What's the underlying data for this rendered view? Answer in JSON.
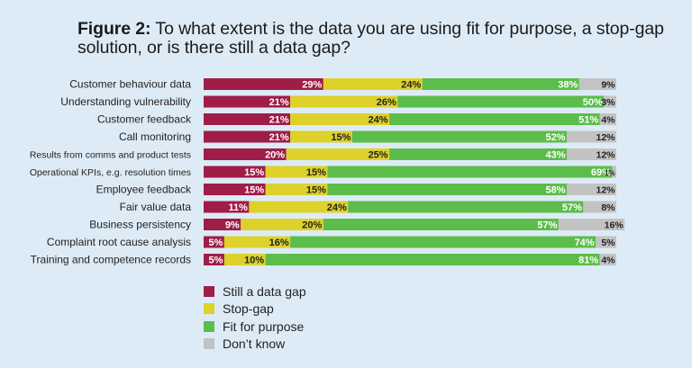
{
  "title": {
    "figure_label": "Figure 2:",
    "text": "To what extent is the data you are using fit for purpose, a stop-gap solution, or is there still a data gap?"
  },
  "chart_data": {
    "type": "bar",
    "orientation": "horizontal",
    "stacked": true,
    "xlim": [
      0,
      100
    ],
    "categories": [
      "Customer behaviour data",
      "Understanding vulnerability",
      "Customer feedback",
      "Call monitoring",
      "Results from comms and product tests",
      "Operational KPIs, e.g. resolution times",
      "Employee feedback",
      "Fair value data",
      "Business persistency",
      "Complaint root cause analysis",
      "Training and competence records"
    ],
    "series": [
      {
        "name": "Still a data gap",
        "color": "#a01d48",
        "values": [
          29,
          21,
          21,
          21,
          20,
          15,
          15,
          11,
          9,
          5,
          5
        ]
      },
      {
        "name": "Stop-gap",
        "color": "#ddd12a",
        "values": [
          24,
          26,
          24,
          15,
          25,
          15,
          15,
          24,
          20,
          16,
          10
        ]
      },
      {
        "name": "Fit for purpose",
        "color": "#5cbd4a",
        "values": [
          38,
          50,
          51,
          52,
          43,
          69,
          58,
          57,
          57,
          74,
          81
        ]
      },
      {
        "name": "Don’t know",
        "color": "#c3c3c3",
        "values": [
          9,
          3,
          4,
          12,
          12,
          1,
          12,
          8,
          16,
          5,
          4
        ]
      }
    ],
    "label_suffix": "%",
    "legend_position": "bottom-left"
  }
}
